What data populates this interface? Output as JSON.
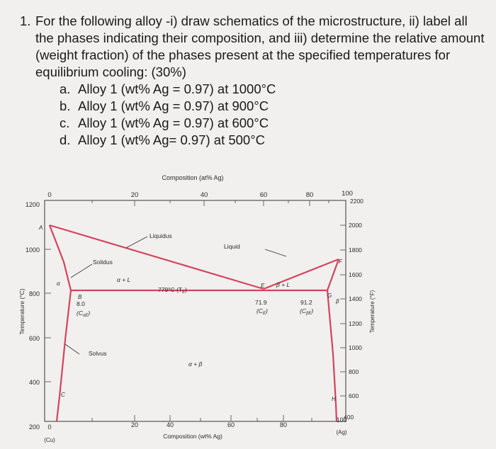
{
  "question": {
    "number": "1.",
    "text": "For the following alloy -i) draw schematics of the microstructure, ii) label all the phases indicating their composition, and iii) determine the relative amount (weight fraction) of the phases present at the specified temperatures for equilibrium cooling: (30%)",
    "parts": [
      {
        "letter": "a.",
        "text": "Alloy 1 (wt% Ag = 0.97) at 1000°C"
      },
      {
        "letter": "b.",
        "text": "Alloy 1 (wt% Ag = 0.97) at 900°C"
      },
      {
        "letter": "c.",
        "text": "Alloy 1 (wt% Ag = 0.97) at 600°C"
      },
      {
        "letter": "d.",
        "text": "Alloy 1 (wt% Ag= 0.97) at 500°C"
      }
    ]
  },
  "diagram": {
    "top_axis_title": "Composition (at% Ag)",
    "top_ticks": [
      "0",
      "20",
      "40",
      "60",
      "80",
      "100"
    ],
    "bottom_axis_title": "Composition (wt% Ag)",
    "bottom_ticks": [
      "0",
      "20",
      "40",
      "60",
      "80",
      "100"
    ],
    "left_axis_title": "Temperature (°C)",
    "left_ticks": [
      "1200",
      "1000",
      "800",
      "600",
      "400",
      "200"
    ],
    "right_axis_title": "Temperature (°F)",
    "right_ticks": [
      "2200",
      "2000",
      "1800",
      "1600",
      "1400",
      "1200",
      "1000",
      "800",
      "600",
      "400"
    ],
    "bottom_left_label": "(Cu)",
    "bottom_right_label": "(Ag)",
    "labels": {
      "liquidus": "Liquidus",
      "liquid": "Liquid",
      "solidus": "Solidus",
      "solvus": "Solvus",
      "alpha_l": "α + L",
      "beta_l": "β + L",
      "alpha_beta": "α + β",
      "eutectic_temp": "779°C (T",
      "eutectic_temp_sub": "E",
      "eutectic_temp_close": ")",
      "c_alpha_e": "8.0",
      "c_alpha_e_sym": "(C",
      "c_alpha_e_sub": "αE",
      "c_alpha_e_close": ")",
      "c_e": "71.9",
      "c_e_sym": "(C",
      "c_e_sub": "E",
      "c_e_close": ")",
      "c_beta_e": "91.2",
      "c_beta_e_sym": "(C",
      "c_beta_e_sub": "βE",
      "c_beta_e_close": ")",
      "pt_A": "A",
      "pt_B": "B",
      "pt_C": "C",
      "pt_E": "E",
      "pt_F": "F",
      "pt_G": "G",
      "pt_H": "H",
      "alpha": "α",
      "beta": "β"
    },
    "colors": {
      "phase_line": "#d4445c",
      "axis": "#555555",
      "text": "#2a2a2a"
    }
  }
}
